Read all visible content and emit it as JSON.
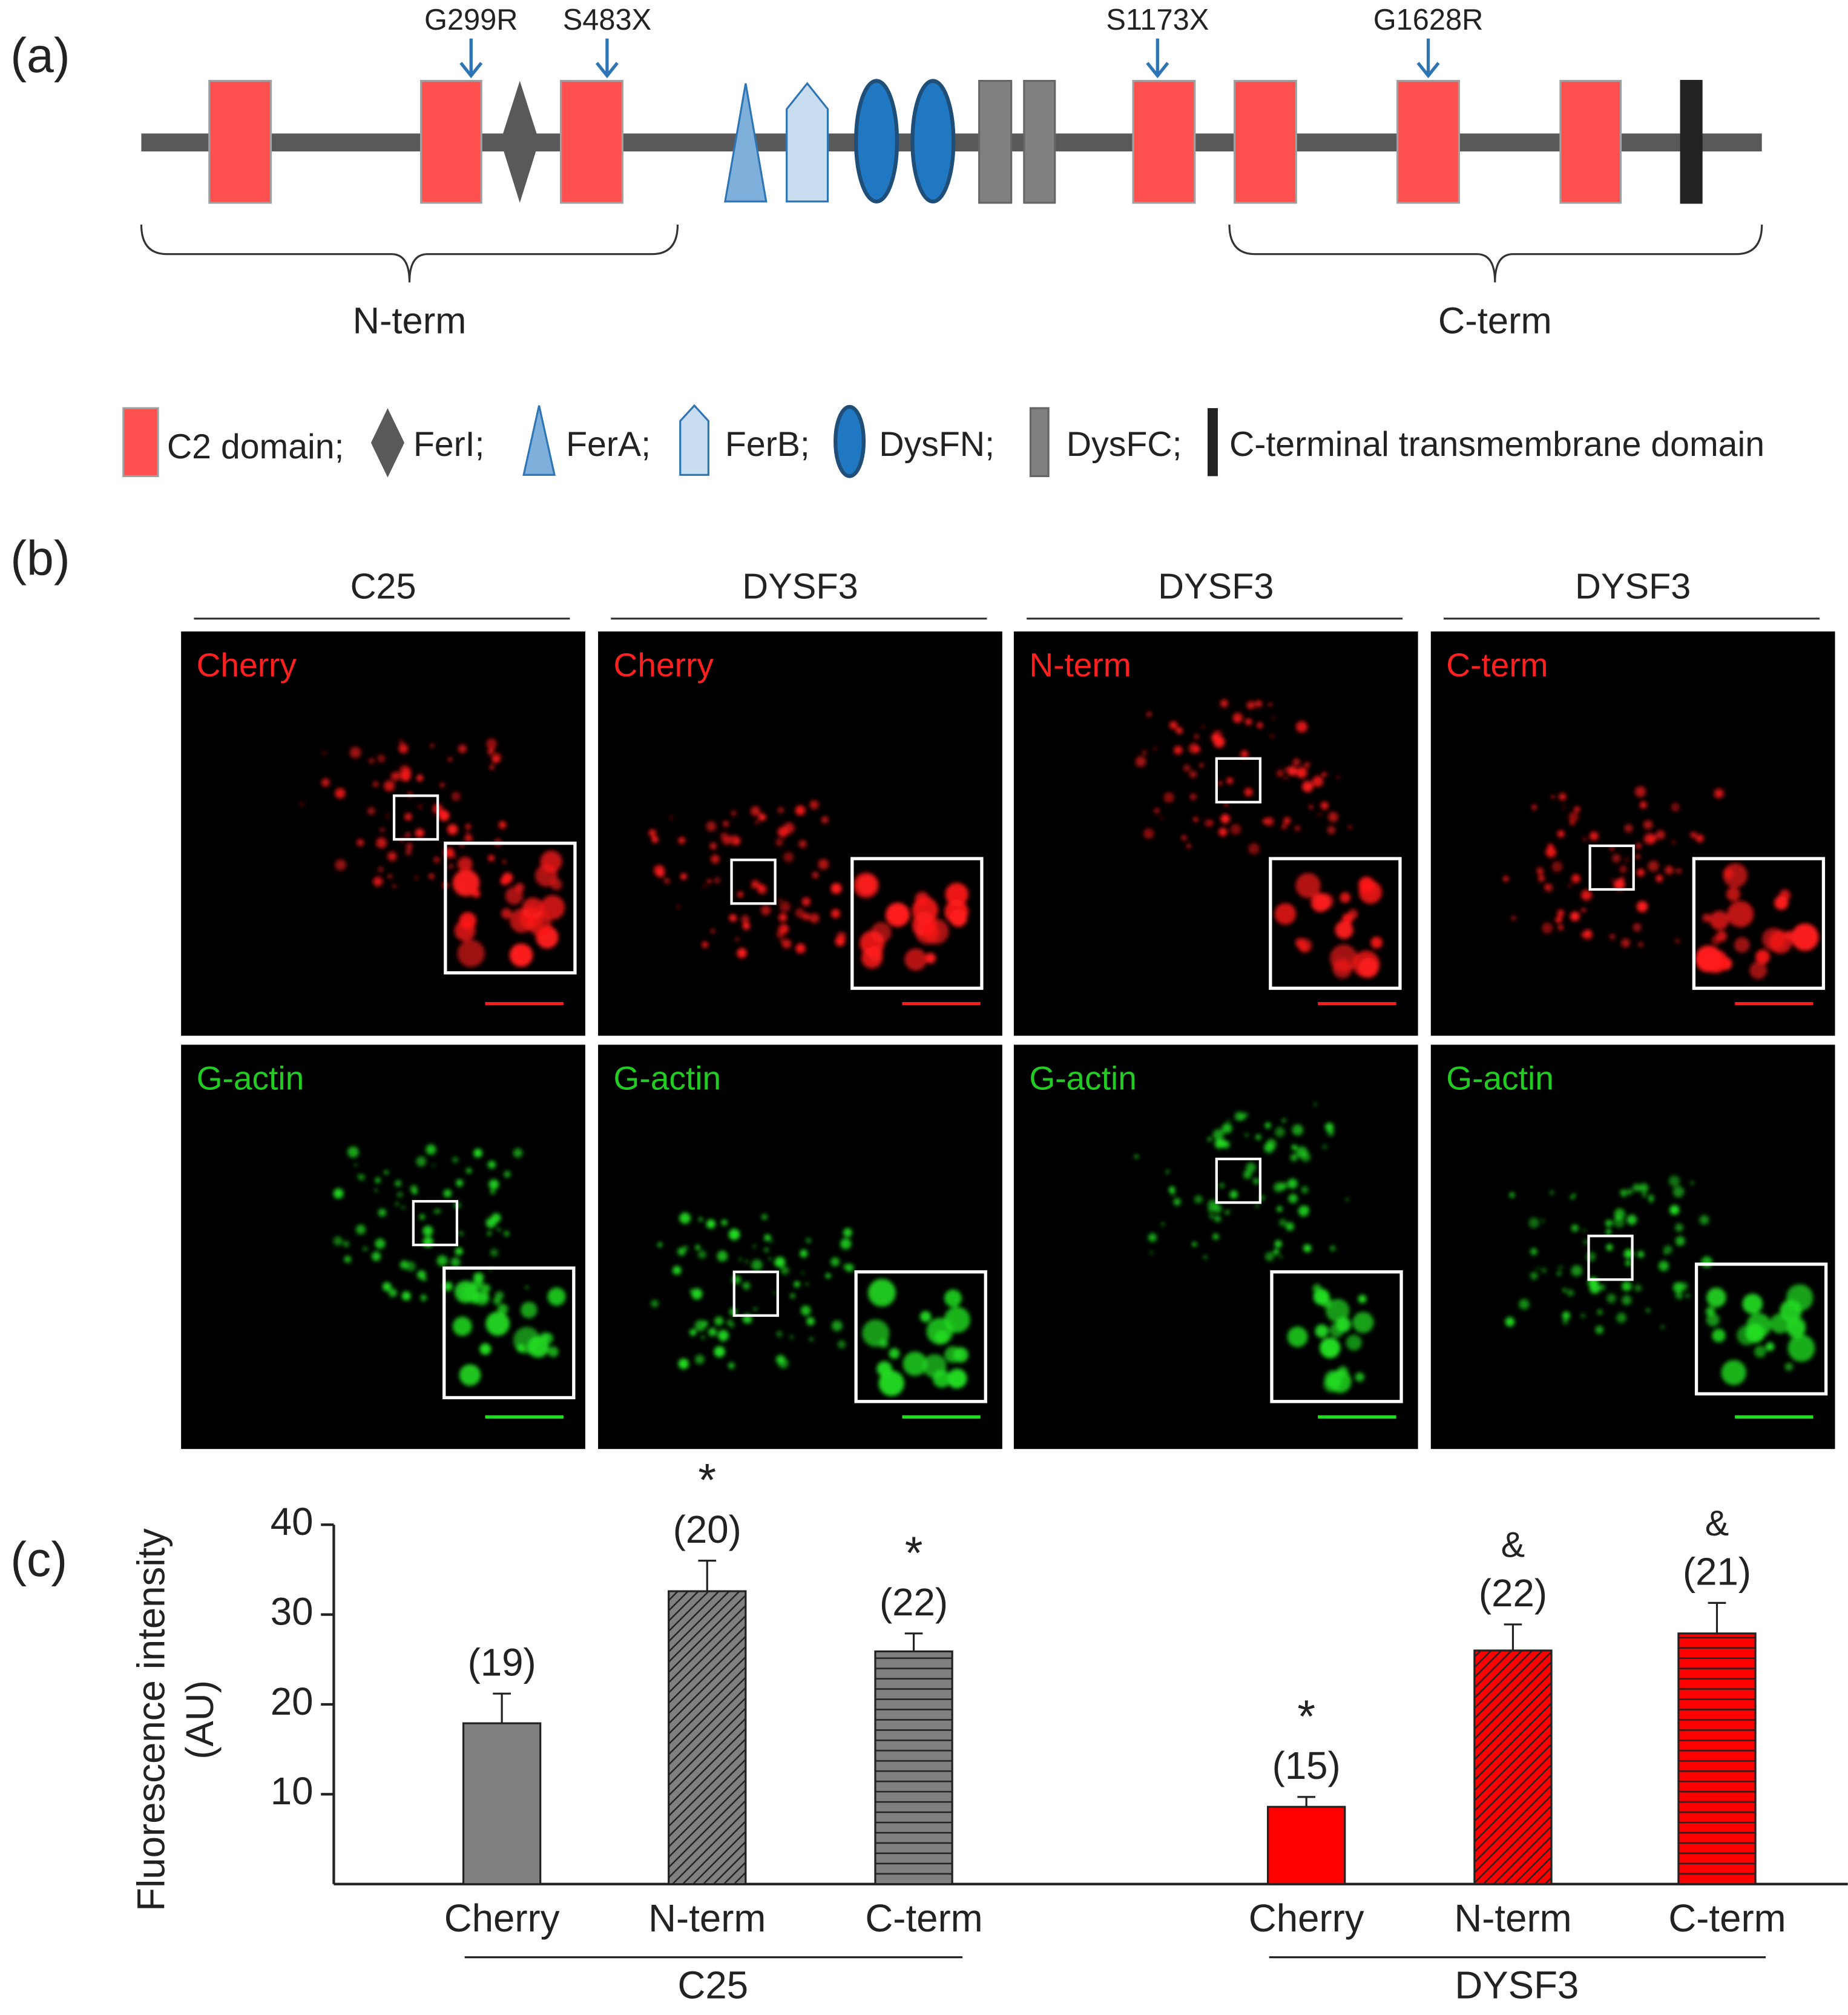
{
  "panel_labels": [
    "(a)",
    "(b)",
    "(c)"
  ],
  "diagram": {
    "mutations": [
      "G299R",
      "S483X",
      "S1173X",
      "G1628R"
    ],
    "regions": [
      "N-term",
      "C-term"
    ],
    "legend": [
      "C2 domain;",
      "FerI;",
      "FerA;",
      "FerB;",
      "DysFN;",
      "DysFC;",
      "C-terminal transmembrane domain"
    ]
  },
  "images": {
    "columns": [
      "C25",
      "DYSF3",
      "DYSF3",
      "DYSF3"
    ],
    "rows": [
      [
        "Cherry",
        "Cherry",
        "N-term",
        "C-term"
      ],
      [
        "G-actin",
        "G-actin",
        "G-actin",
        "G-actin"
      ]
    ]
  },
  "chart_data": {
    "type": "bar",
    "y_label": [
      "Fluorescence intensity",
      "(AU)"
    ],
    "categories": [
      "Cherry",
      "N-term",
      "C-term"
    ],
    "series": [
      {
        "name": "C25",
        "color": "#808080",
        "values": [
          17.9,
          32.6,
          25.9
        ],
        "errors": [
          3.3,
          3.4,
          2.0
        ],
        "count_labels": [
          "(19)",
          "(20)",
          "(22)"
        ],
        "significance": [
          null,
          "*",
          "*"
        ]
      },
      {
        "name": "DYSF3",
        "color": "#ff0000",
        "values": [
          8.6,
          26.0,
          27.9
        ],
        "errors": [
          1.1,
          2.9,
          3.4
        ],
        "count_labels": [
          "(15)",
          "(22)",
          "(21)"
        ],
        "significance": [
          "*",
          "&",
          "&"
        ]
      }
    ],
    "ylim": [
      0,
      40
    ],
    "yticks": [
      10,
      20,
      30,
      40
    ]
  }
}
